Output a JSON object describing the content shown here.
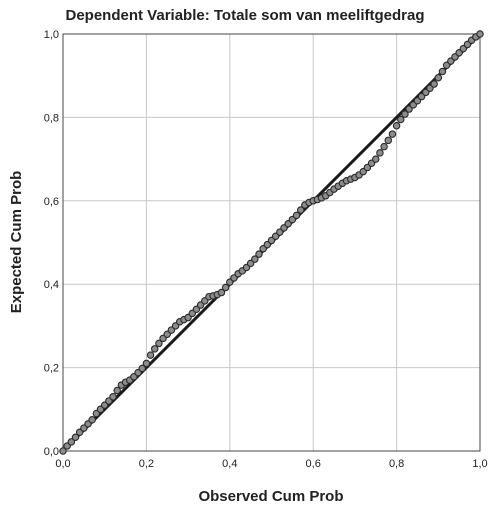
{
  "chart_data": {
    "type": "scatter",
    "title": "Dependent Variable: Totale som van meeliftgedrag",
    "xlabel": "Observed Cum Prob",
    "ylabel": "Expected Cum Prob",
    "xlim": [
      0.0,
      1.0
    ],
    "ylim": [
      0.0,
      1.0
    ],
    "x_ticks": [
      "0,0",
      "0,2",
      "0,4",
      "0,6",
      "0,8",
      "1,0"
    ],
    "y_ticks": [
      "0,0",
      "0,2",
      "0,4",
      "0,6",
      "0,8",
      "1,0"
    ],
    "tick_values": [
      0.0,
      0.2,
      0.4,
      0.6,
      0.8,
      1.0
    ],
    "grid": true,
    "reference_line": {
      "x": [
        0.0,
        1.0
      ],
      "y": [
        0.0,
        1.0
      ]
    },
    "colors": {
      "points_fill": "#8c8c8c",
      "points_stroke": "#2a2a2a",
      "line": "#1a1a1a",
      "grid": "#c8c8c8"
    },
    "series": [
      {
        "x": [
          0.0,
          0.01,
          0.02,
          0.03,
          0.04,
          0.05,
          0.06,
          0.07,
          0.08,
          0.09,
          0.1,
          0.11,
          0.12,
          0.13,
          0.14,
          0.15,
          0.16,
          0.17,
          0.18,
          0.19,
          0.2,
          0.21,
          0.22,
          0.23,
          0.24,
          0.25,
          0.26,
          0.27,
          0.28,
          0.29,
          0.3,
          0.31,
          0.32,
          0.33,
          0.34,
          0.35,
          0.36,
          0.37,
          0.38,
          0.39,
          0.4,
          0.41,
          0.42,
          0.43,
          0.44,
          0.45,
          0.46,
          0.47,
          0.48,
          0.49,
          0.5,
          0.51,
          0.52,
          0.53,
          0.54,
          0.55,
          0.56,
          0.57,
          0.58,
          0.59,
          0.6,
          0.61,
          0.62,
          0.63,
          0.64,
          0.65,
          0.66,
          0.67,
          0.68,
          0.69,
          0.7,
          0.71,
          0.72,
          0.73,
          0.74,
          0.75,
          0.76,
          0.77,
          0.78,
          0.79,
          0.8,
          0.81,
          0.82,
          0.83,
          0.84,
          0.85,
          0.86,
          0.87,
          0.88,
          0.89,
          0.9,
          0.91,
          0.92,
          0.93,
          0.94,
          0.95,
          0.96,
          0.97,
          0.98,
          0.99,
          1.0
        ],
        "y": [
          0.0,
          0.012,
          0.022,
          0.033,
          0.045,
          0.055,
          0.065,
          0.075,
          0.09,
          0.1,
          0.11,
          0.12,
          0.13,
          0.145,
          0.158,
          0.165,
          0.17,
          0.178,
          0.188,
          0.198,
          0.21,
          0.23,
          0.245,
          0.258,
          0.27,
          0.28,
          0.29,
          0.3,
          0.31,
          0.315,
          0.32,
          0.33,
          0.34,
          0.35,
          0.36,
          0.37,
          0.372,
          0.375,
          0.38,
          0.392,
          0.405,
          0.415,
          0.425,
          0.432,
          0.44,
          0.45,
          0.46,
          0.472,
          0.485,
          0.495,
          0.505,
          0.515,
          0.525,
          0.535,
          0.545,
          0.555,
          0.565,
          0.578,
          0.59,
          0.596,
          0.6,
          0.603,
          0.607,
          0.612,
          0.62,
          0.628,
          0.635,
          0.642,
          0.648,
          0.652,
          0.656,
          0.662,
          0.67,
          0.68,
          0.69,
          0.7,
          0.715,
          0.73,
          0.745,
          0.76,
          0.78,
          0.795,
          0.808,
          0.82,
          0.83,
          0.84,
          0.85,
          0.86,
          0.87,
          0.88,
          0.895,
          0.91,
          0.925,
          0.935,
          0.945,
          0.955,
          0.965,
          0.975,
          0.985,
          0.993,
          1.0
        ]
      }
    ]
  }
}
